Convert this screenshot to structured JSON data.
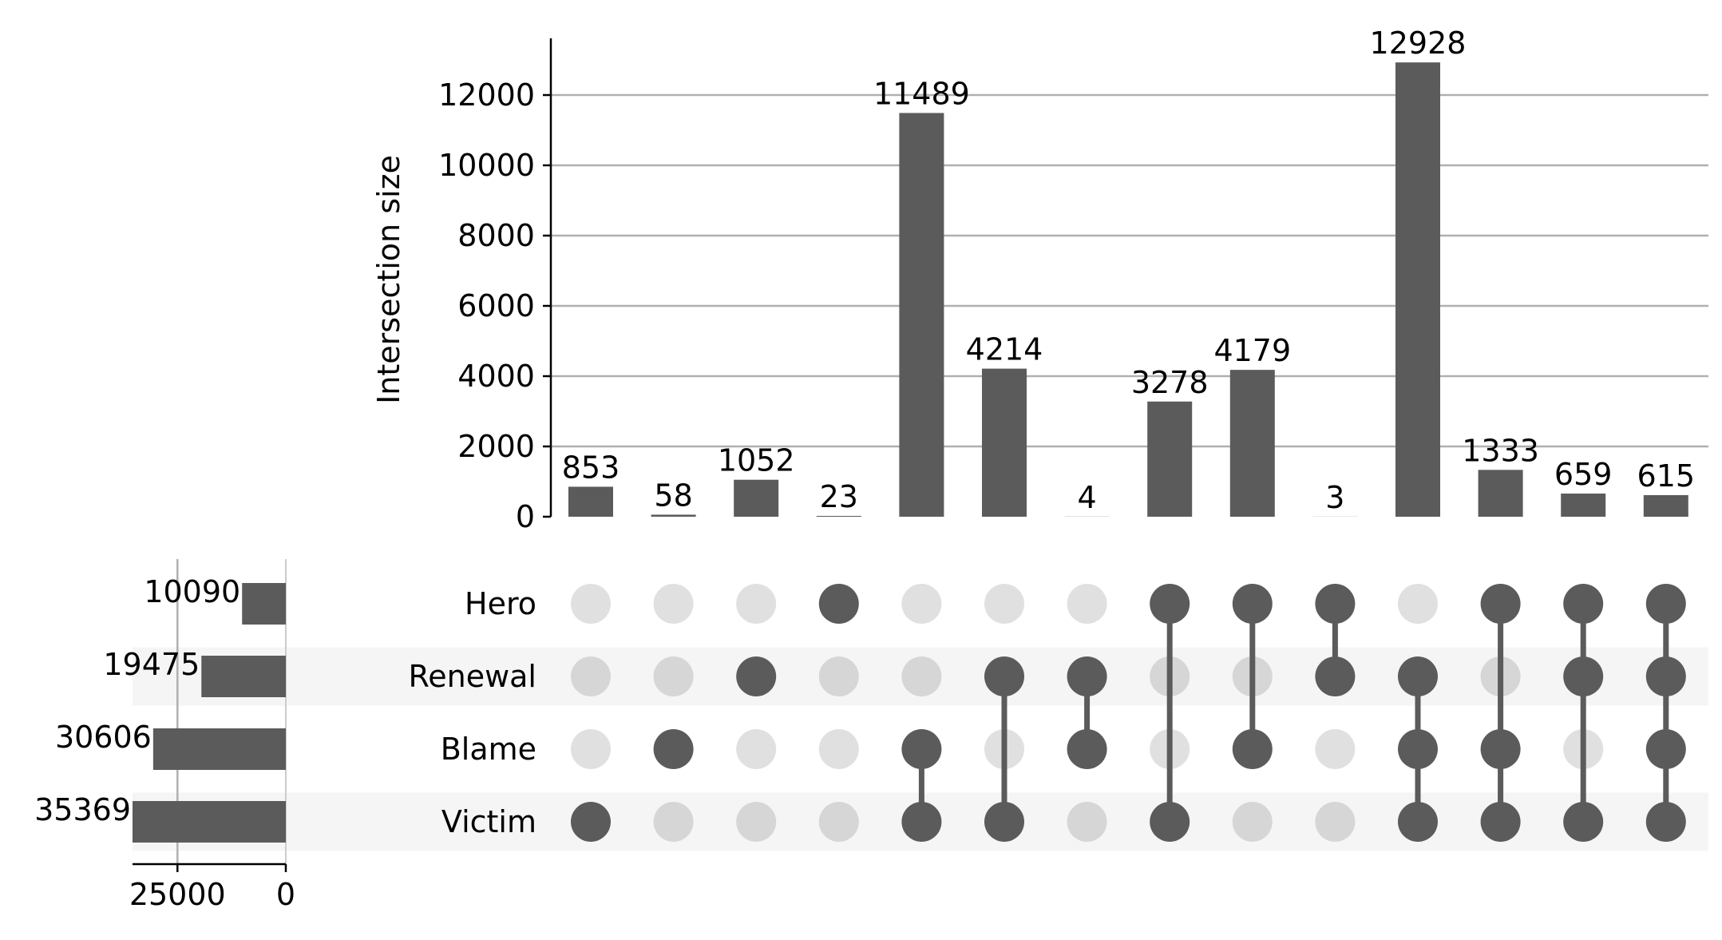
{
  "chart_data": {
    "type": "upset",
    "sets": [
      "Hero",
      "Renewal",
      "Blame",
      "Victim"
    ],
    "set_sizes": [
      10090,
      19475,
      30606,
      35369
    ],
    "intersections": [
      {
        "members": [
          "Victim"
        ],
        "size": 853
      },
      {
        "members": [
          "Blame"
        ],
        "size": 58
      },
      {
        "members": [
          "Renewal"
        ],
        "size": 1052
      },
      {
        "members": [
          "Hero"
        ],
        "size": 23
      },
      {
        "members": [
          "Blame",
          "Victim"
        ],
        "size": 11489
      },
      {
        "members": [
          "Renewal",
          "Victim"
        ],
        "size": 4214
      },
      {
        "members": [
          "Renewal",
          "Blame"
        ],
        "size": 4
      },
      {
        "members": [
          "Hero",
          "Victim"
        ],
        "size": 3278
      },
      {
        "members": [
          "Hero",
          "Blame"
        ],
        "size": 4179
      },
      {
        "members": [
          "Hero",
          "Renewal"
        ],
        "size": 3
      },
      {
        "members": [
          "Renewal",
          "Blame",
          "Victim"
        ],
        "size": 12928
      },
      {
        "members": [
          "Hero",
          "Blame",
          "Victim"
        ],
        "size": 1333
      },
      {
        "members": [
          "Hero",
          "Renewal",
          "Victim"
        ],
        "size": 659
      },
      {
        "members": [
          "Hero",
          "Renewal",
          "Blame",
          "Victim"
        ],
        "size": 615
      }
    ],
    "intersection_axis": {
      "label": "Intersection size",
      "ticks": [
        0,
        2000,
        4000,
        6000,
        8000,
        10000,
        12000
      ],
      "ylim": [
        0,
        13575
      ],
      "grid": true
    },
    "set_size_axis": {
      "ticks": [
        25000,
        0
      ],
      "xlim": [
        35369,
        0
      ],
      "grid": true
    },
    "colors": {
      "bar": "#5b5b5b",
      "dot_active": "#5b5b5b",
      "dot_inactive_plain": "#e0e0e0",
      "dot_inactive_shaded": "#d6d6d6",
      "row_shade": "#f5f5f5",
      "grid": "#b0b0b0"
    }
  }
}
